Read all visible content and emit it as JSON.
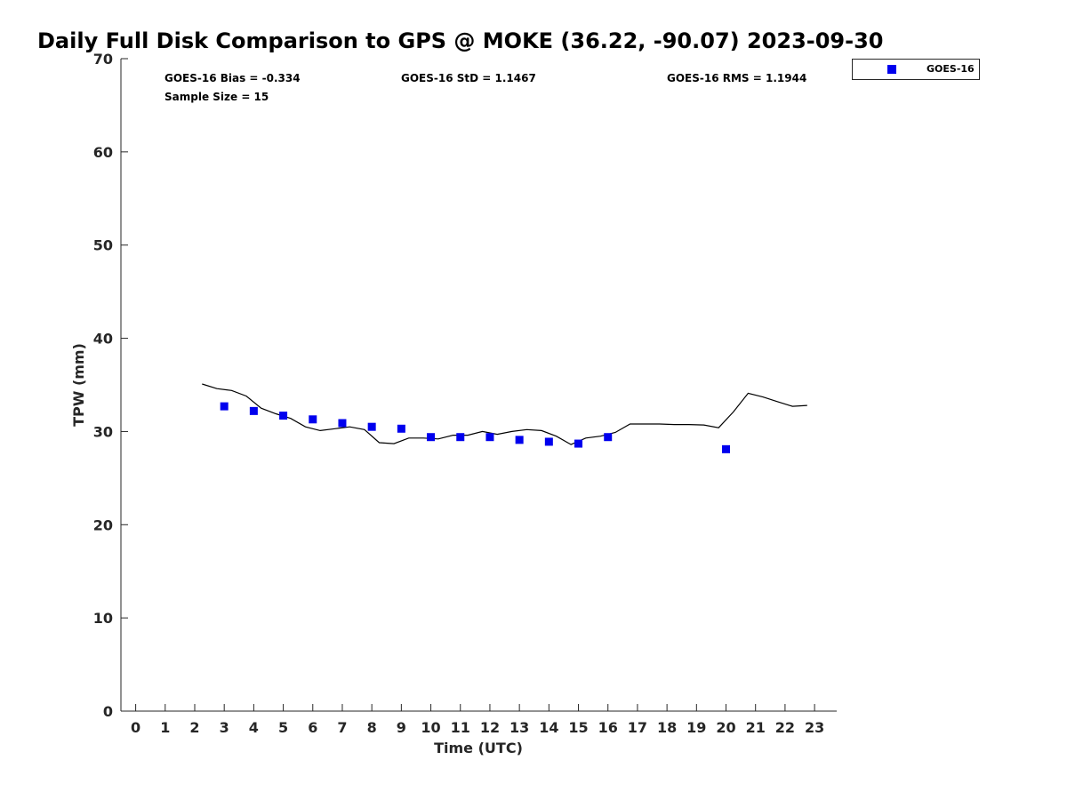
{
  "chart_data": {
    "type": "scatter",
    "title": "Daily Full Disk Comparison to GPS @ MOKE (36.22, -90.07) 2023-09-30",
    "xlabel": "Time (UTC)",
    "ylabel": "TPW (mm)",
    "xlim": [
      -0.5,
      23.75
    ],
    "ylim": [
      0,
      70
    ],
    "x_ticks": [
      "0",
      "1",
      "2",
      "3",
      "4",
      "5",
      "6",
      "7",
      "8",
      "9",
      "10",
      "11",
      "12",
      "13",
      "14",
      "15",
      "16",
      "17",
      "18",
      "19",
      "20",
      "21",
      "22",
      "23"
    ],
    "y_ticks": [
      "0",
      "10",
      "20",
      "30",
      "40",
      "50",
      "60",
      "70"
    ],
    "grid": false,
    "legend_position": "top-right",
    "stats": {
      "bias": "GOES-16 Bias = -0.334",
      "std": "GOES-16 StD = 1.1467",
      "rms": "GOES-16 RMS = 1.1944",
      "sample_size": "Sample Size = 15"
    },
    "series": [
      {
        "name": "GOES-16",
        "kind": "scatter",
        "marker": "square",
        "color": "#0000ee",
        "x": [
          3,
          4,
          5,
          6,
          7,
          8,
          9,
          10,
          11,
          12,
          13,
          14,
          15,
          16,
          20
        ],
        "y": [
          32.7,
          32.2,
          31.7,
          31.3,
          30.9,
          30.5,
          30.3,
          29.4,
          29.4,
          29.4,
          29.1,
          28.9,
          28.7,
          29.4,
          28.1
        ]
      },
      {
        "kind": "line",
        "color": "#000000",
        "x": [
          2.25,
          2.75,
          3.25,
          3.75,
          4.25,
          4.75,
          5.25,
          5.75,
          6.25,
          6.75,
          7.25,
          7.75,
          8.25,
          8.75,
          9.25,
          9.75,
          10.25,
          10.75,
          11.25,
          11.75,
          12.25,
          12.75,
          13.25,
          13.75,
          14.25,
          14.75,
          15.25,
          15.75,
          16.25,
          16.75,
          17.25,
          17.75,
          18.25,
          18.75,
          19.25,
          19.75,
          20.25,
          20.75,
          21.25,
          21.75,
          22.25,
          22.75
        ],
        "y": [
          35.1,
          34.6,
          34.4,
          33.8,
          32.5,
          31.9,
          31.4,
          30.5,
          30.1,
          30.3,
          30.5,
          30.2,
          28.8,
          28.7,
          29.3,
          29.3,
          29.2,
          29.6,
          29.6,
          30.0,
          29.7,
          30.0,
          30.2,
          30.1,
          29.5,
          28.6,
          29.3,
          29.5,
          29.9,
          30.8,
          30.8,
          30.8,
          30.75,
          30.75,
          30.7,
          30.4,
          32.1,
          34.1,
          33.7,
          33.2,
          32.7,
          32.8
        ]
      }
    ]
  }
}
